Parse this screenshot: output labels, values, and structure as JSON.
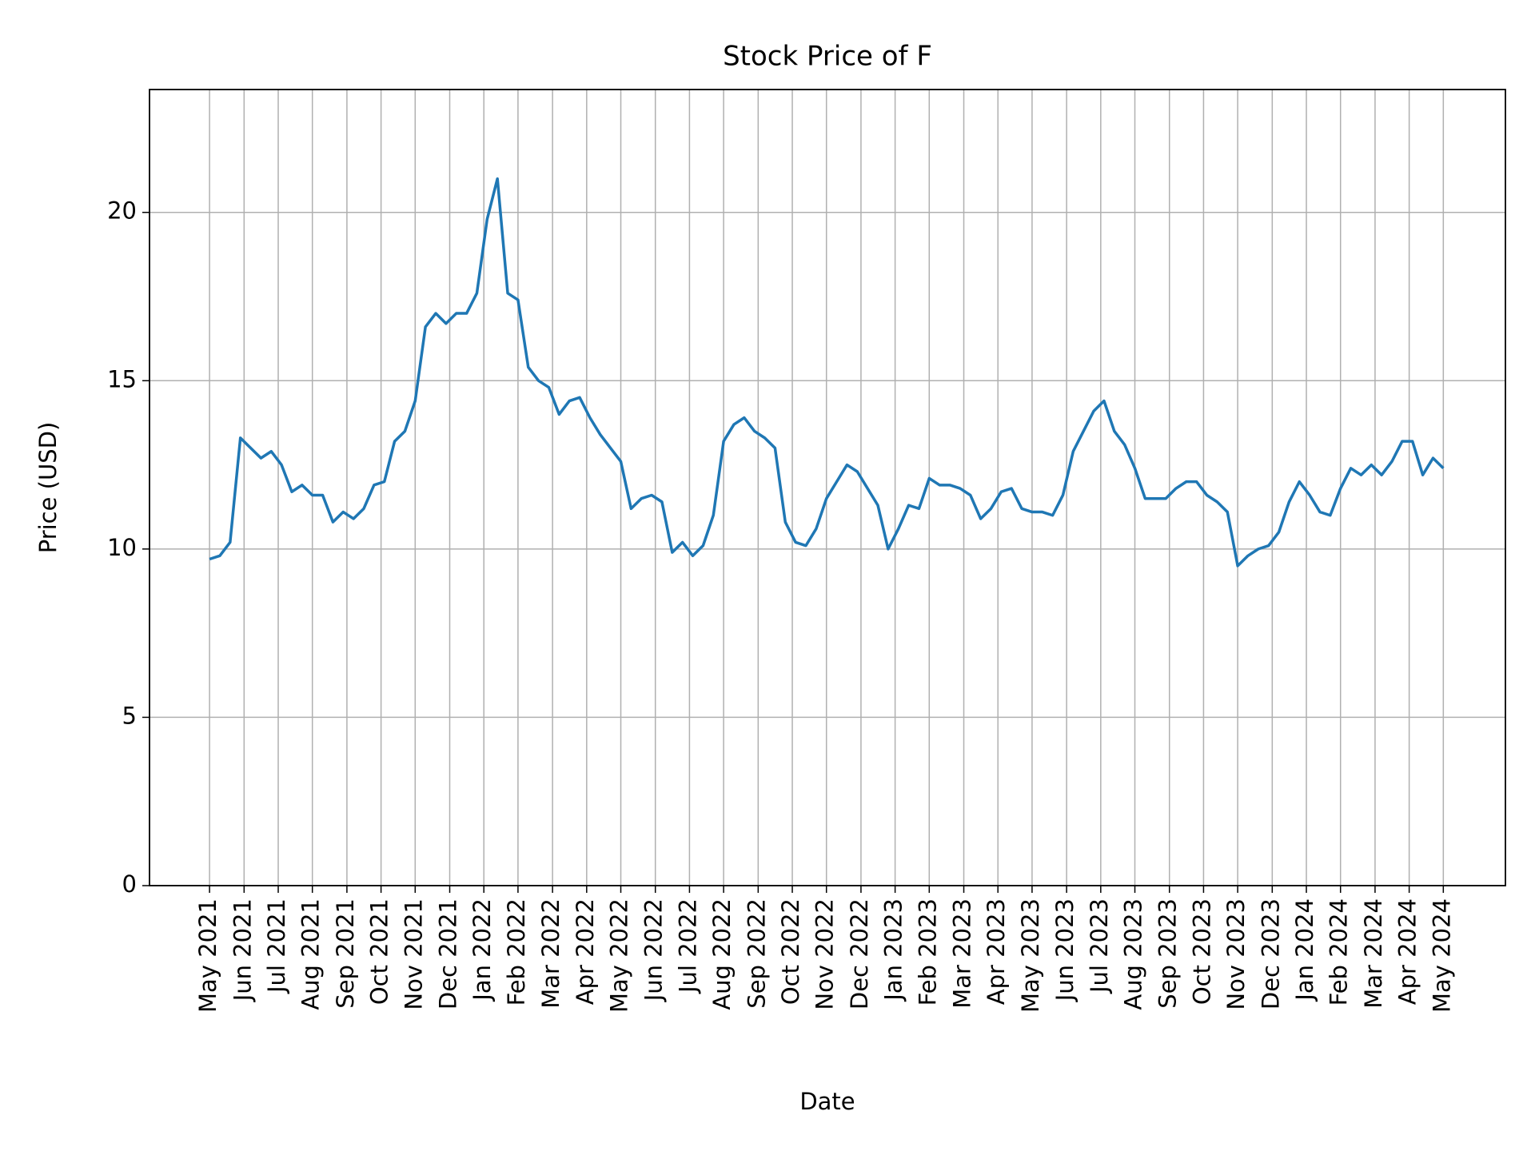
{
  "chart_data": {
    "type": "line",
    "title": "Stock Price of F",
    "xlabel": "Date",
    "ylabel": "Price (USD)",
    "color": "#1f77b4",
    "grid": true,
    "xlim": [
      2021.187,
      2024.484
    ],
    "ylim": [
      0,
      23.65
    ],
    "yticks": [
      0,
      5,
      10,
      15,
      20
    ],
    "xticks": [
      {
        "value": 2021.333,
        "label": "May 2021"
      },
      {
        "value": 2021.417,
        "label": "Jun 2021"
      },
      {
        "value": 2021.5,
        "label": "Jul 2021"
      },
      {
        "value": 2021.583,
        "label": "Aug 2021"
      },
      {
        "value": 2021.667,
        "label": "Sep 2021"
      },
      {
        "value": 2021.75,
        "label": "Oct 2021"
      },
      {
        "value": 2021.833,
        "label": "Nov 2021"
      },
      {
        "value": 2021.917,
        "label": "Dec 2021"
      },
      {
        "value": 2022.0,
        "label": "Jan 2022"
      },
      {
        "value": 2022.083,
        "label": "Feb 2022"
      },
      {
        "value": 2022.167,
        "label": "Mar 2022"
      },
      {
        "value": 2022.25,
        "label": "Apr 2022"
      },
      {
        "value": 2022.333,
        "label": "May 2022"
      },
      {
        "value": 2022.417,
        "label": "Jun 2022"
      },
      {
        "value": 2022.5,
        "label": "Jul 2022"
      },
      {
        "value": 2022.583,
        "label": "Aug 2022"
      },
      {
        "value": 2022.667,
        "label": "Sep 2022"
      },
      {
        "value": 2022.75,
        "label": "Oct 2022"
      },
      {
        "value": 2022.833,
        "label": "Nov 2022"
      },
      {
        "value": 2022.917,
        "label": "Dec 2022"
      },
      {
        "value": 2023.0,
        "label": "Jan 2023"
      },
      {
        "value": 2023.083,
        "label": "Feb 2023"
      },
      {
        "value": 2023.167,
        "label": "Mar 2023"
      },
      {
        "value": 2023.25,
        "label": "Apr 2023"
      },
      {
        "value": 2023.333,
        "label": "May 2023"
      },
      {
        "value": 2023.417,
        "label": "Jun 2023"
      },
      {
        "value": 2023.5,
        "label": "Jul 2023"
      },
      {
        "value": 2023.583,
        "label": "Aug 2023"
      },
      {
        "value": 2023.667,
        "label": "Sep 2023"
      },
      {
        "value": 2023.75,
        "label": "Oct 2023"
      },
      {
        "value": 2023.833,
        "label": "Nov 2023"
      },
      {
        "value": 2023.917,
        "label": "Dec 2023"
      },
      {
        "value": 2024.0,
        "label": "Jan 2024"
      },
      {
        "value": 2024.083,
        "label": "Feb 2024"
      },
      {
        "value": 2024.167,
        "label": "Mar 2024"
      },
      {
        "value": 2024.25,
        "label": "Apr 2024"
      },
      {
        "value": 2024.333,
        "label": "May 2024"
      }
    ],
    "x": [
      2021.333,
      2021.358,
      2021.383,
      2021.408,
      2021.433,
      2021.458,
      2021.483,
      2021.508,
      2021.533,
      2021.558,
      2021.583,
      2021.608,
      2021.633,
      2021.658,
      2021.683,
      2021.708,
      2021.733,
      2021.758,
      2021.783,
      2021.808,
      2021.833,
      2021.858,
      2021.883,
      2021.908,
      2021.933,
      2021.958,
      2021.983,
      2022.008,
      2022.033,
      2022.058,
      2022.083,
      2022.108,
      2022.133,
      2022.158,
      2022.183,
      2022.208,
      2022.233,
      2022.258,
      2022.283,
      2022.308,
      2022.333,
      2022.358,
      2022.383,
      2022.408,
      2022.433,
      2022.458,
      2022.483,
      2022.508,
      2022.533,
      2022.558,
      2022.583,
      2022.608,
      2022.633,
      2022.658,
      2022.683,
      2022.708,
      2022.733,
      2022.758,
      2022.783,
      2022.808,
      2022.833,
      2022.858,
      2022.883,
      2022.908,
      2022.933,
      2022.958,
      2022.983,
      2023.008,
      2023.033,
      2023.058,
      2023.083,
      2023.108,
      2023.133,
      2023.158,
      2023.183,
      2023.208,
      2023.233,
      2023.258,
      2023.283,
      2023.308,
      2023.333,
      2023.358,
      2023.383,
      2023.408,
      2023.433,
      2023.458,
      2023.483,
      2023.508,
      2023.533,
      2023.558,
      2023.583,
      2023.608,
      2023.633,
      2023.658,
      2023.683,
      2023.708,
      2023.733,
      2023.758,
      2023.783,
      2023.808,
      2023.833,
      2023.858,
      2023.883,
      2023.908,
      2023.933,
      2023.958,
      2023.983,
      2024.008,
      2024.033,
      2024.058,
      2024.083,
      2024.108,
      2024.133,
      2024.158,
      2024.183,
      2024.208,
      2024.233,
      2024.258,
      2024.283,
      2024.308,
      2024.333
    ],
    "values": [
      9.7,
      9.8,
      10.2,
      13.3,
      13.0,
      12.7,
      12.9,
      12.5,
      11.7,
      11.9,
      11.6,
      11.6,
      10.8,
      11.1,
      10.9,
      11.2,
      11.9,
      12.0,
      13.2,
      13.5,
      14.4,
      16.6,
      17.0,
      16.7,
      17.0,
      17.0,
      17.6,
      19.8,
      21.0,
      17.6,
      17.4,
      15.4,
      15.0,
      14.8,
      14.0,
      14.4,
      14.5,
      13.9,
      13.4,
      13.0,
      12.6,
      11.2,
      11.5,
      11.6,
      11.4,
      9.9,
      10.2,
      9.8,
      10.1,
      11.0,
      13.2,
      13.7,
      13.9,
      13.5,
      13.3,
      13.0,
      10.8,
      10.2,
      10.1,
      10.6,
      11.5,
      12.0,
      12.5,
      12.3,
      11.8,
      11.3,
      10.0,
      10.6,
      11.3,
      11.2,
      12.1,
      11.9,
      11.9,
      11.8,
      11.6,
      10.9,
      11.2,
      11.7,
      11.8,
      11.2,
      11.1,
      11.1,
      11.0,
      11.6,
      12.9,
      13.5,
      14.1,
      14.4,
      13.5,
      13.1,
      12.4,
      11.5,
      11.5,
      11.5,
      11.8,
      12.0,
      12.0,
      11.6,
      11.4,
      11.1,
      9.5,
      9.8,
      10.0,
      10.1,
      10.5,
      11.4,
      12.0,
      11.6,
      11.1,
      11.0,
      11.8,
      12.4,
      12.2,
      12.5,
      12.2,
      12.6,
      13.2,
      13.2,
      12.2,
      12.7,
      12.4
    ]
  }
}
